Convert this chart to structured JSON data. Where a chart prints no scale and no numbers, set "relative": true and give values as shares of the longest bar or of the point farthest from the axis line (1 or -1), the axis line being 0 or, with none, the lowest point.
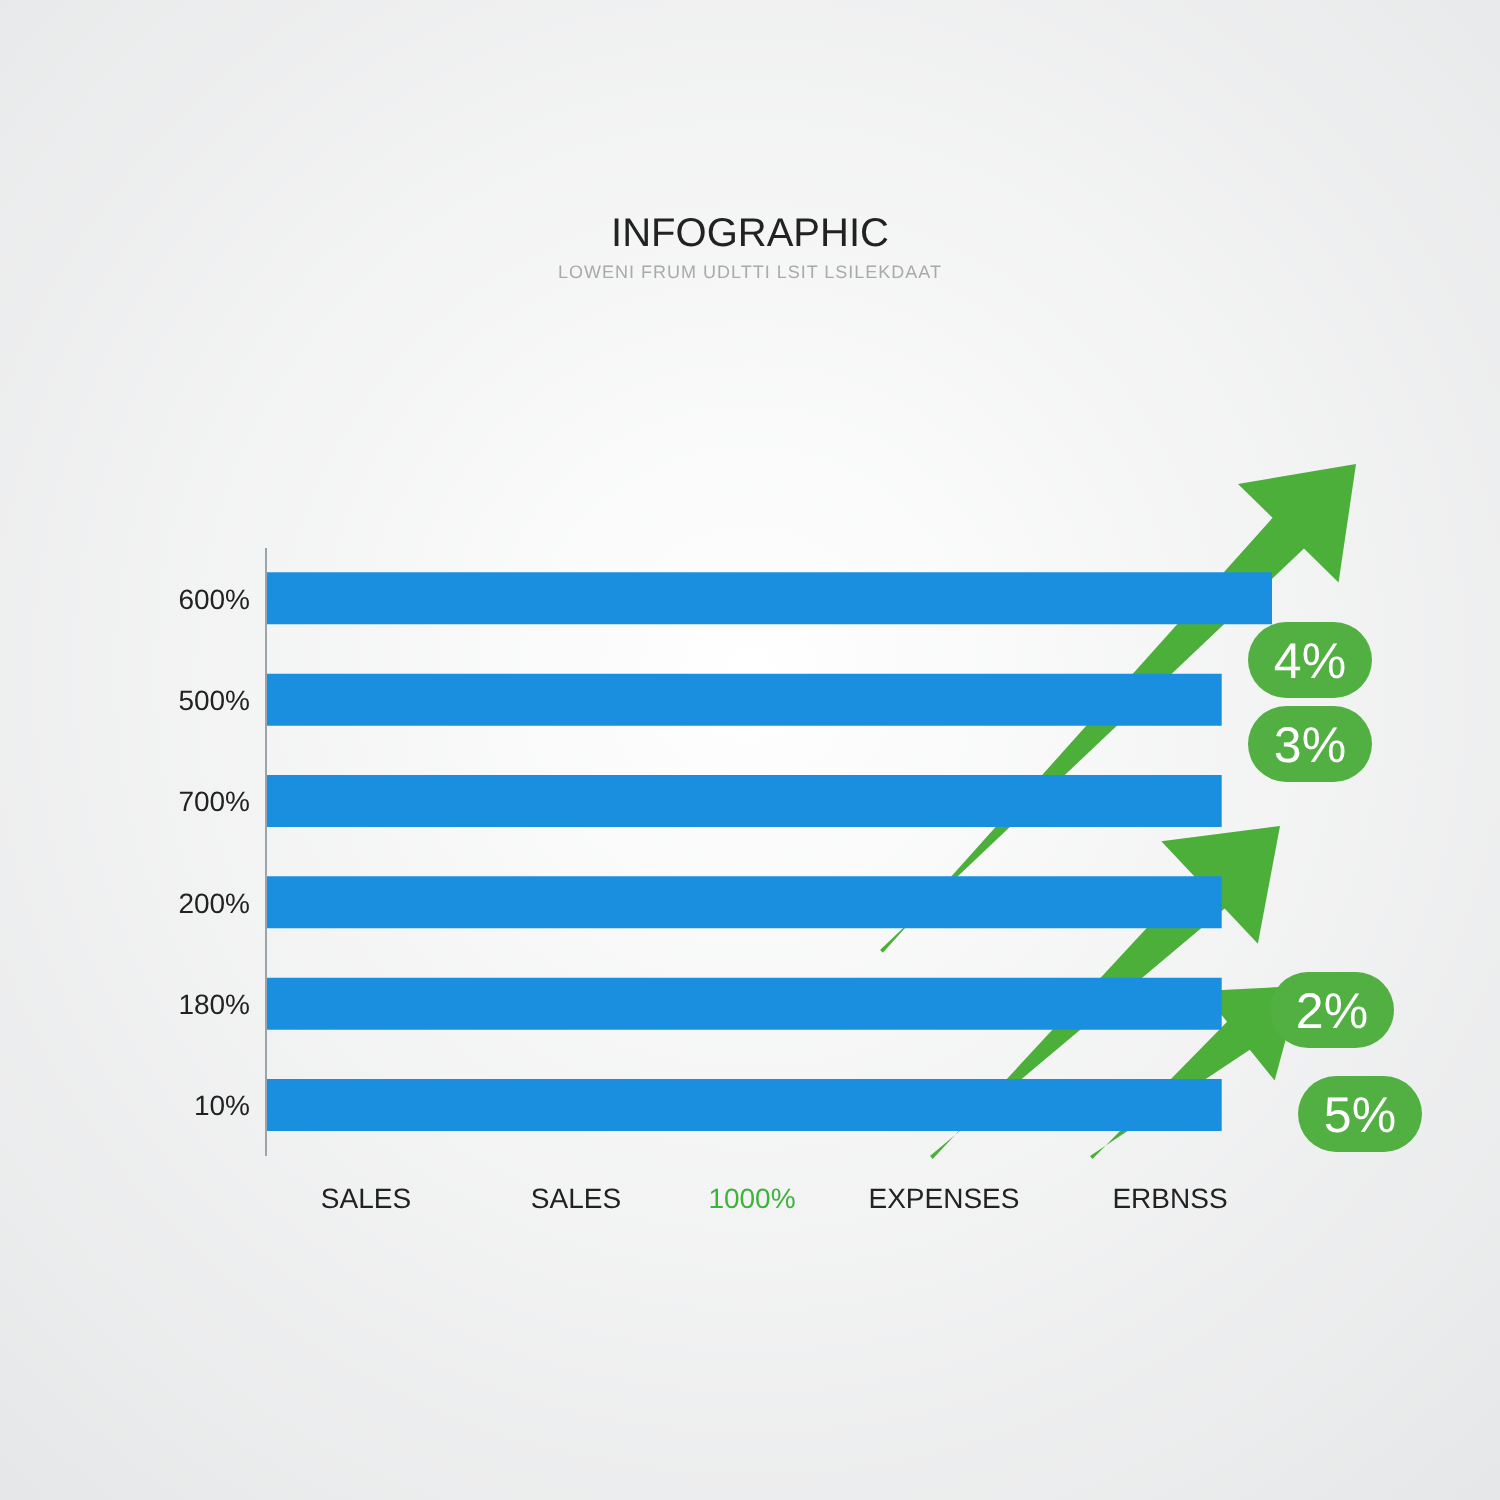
{
  "chart_data": {
    "type": "bar",
    "orientation": "horizontal",
    "relative": true,
    "title": "INFOGRAPHIC",
    "subtitle": "LOWENI FRUM UDLTTI LSIT LSILEKDAAT",
    "categories": [
      "600%",
      "500%",
      "700%",
      "200%",
      "180%",
      "10%"
    ],
    "values": [
      1,
      0.95,
      0.95,
      0.95,
      0.95,
      0.95
    ],
    "color": "#1a8fe0",
    "annotations": [
      "SALES",
      "SALES",
      "1000%",
      "EXPENSES",
      "ERBNSS",
      "4%",
      "3%",
      "2%",
      "5%"
    ]
  }
}
